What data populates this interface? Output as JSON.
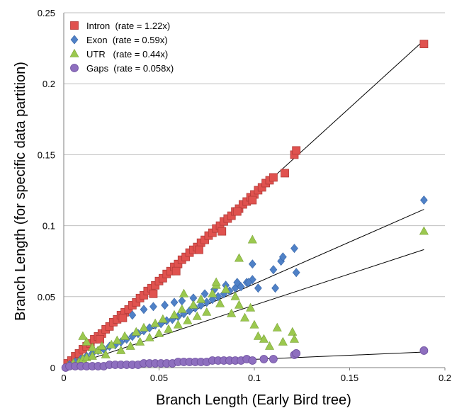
{
  "chart_data": {
    "type": "scatter",
    "title": "",
    "xlabel": "Branch Length (Early Bird tree)",
    "ylabel": "Branch Length (for specific data partition)",
    "xlim": [
      0,
      0.2
    ],
    "ylim": [
      0,
      0.25
    ],
    "x_ticks": [
      "0",
      "0.05",
      "0.1",
      "0.15",
      "0.2"
    ],
    "y_ticks": [
      "0",
      "0.05",
      "0.1",
      "0.15",
      "0.2",
      "0.25"
    ],
    "grid": "horizontal",
    "legend_position": "top-left",
    "series": [
      {
        "name": "Intron  (rate = 1.22x)",
        "marker": "square",
        "color": "#e0524f",
        "rate": 1.22,
        "points": [
          [
            0.002,
            0.003
          ],
          [
            0.004,
            0.005
          ],
          [
            0.006,
            0.008
          ],
          [
            0.008,
            0.01
          ],
          [
            0.01,
            0.013
          ],
          [
            0.012,
            0.015
          ],
          [
            0.014,
            0.017
          ],
          [
            0.016,
            0.02
          ],
          [
            0.018,
            0.022
          ],
          [
            0.02,
            0.024
          ],
          [
            0.022,
            0.027
          ],
          [
            0.024,
            0.029
          ],
          [
            0.026,
            0.032
          ],
          [
            0.028,
            0.034
          ],
          [
            0.03,
            0.037
          ],
          [
            0.032,
            0.039
          ],
          [
            0.034,
            0.041
          ],
          [
            0.036,
            0.044
          ],
          [
            0.038,
            0.046
          ],
          [
            0.04,
            0.049
          ],
          [
            0.042,
            0.051
          ],
          [
            0.044,
            0.054
          ],
          [
            0.046,
            0.056
          ],
          [
            0.048,
            0.058
          ],
          [
            0.05,
            0.061
          ],
          [
            0.052,
            0.063
          ],
          [
            0.054,
            0.066
          ],
          [
            0.056,
            0.068
          ],
          [
            0.058,
            0.071
          ],
          [
            0.06,
            0.073
          ],
          [
            0.062,
            0.076
          ],
          [
            0.064,
            0.078
          ],
          [
            0.066,
            0.081
          ],
          [
            0.068,
            0.083
          ],
          [
            0.07,
            0.085
          ],
          [
            0.072,
            0.088
          ],
          [
            0.074,
            0.09
          ],
          [
            0.076,
            0.093
          ],
          [
            0.078,
            0.095
          ],
          [
            0.08,
            0.098
          ],
          [
            0.082,
            0.1
          ],
          [
            0.084,
            0.103
          ],
          [
            0.086,
            0.105
          ],
          [
            0.088,
            0.107
          ],
          [
            0.09,
            0.11
          ],
          [
            0.092,
            0.112
          ],
          [
            0.094,
            0.115
          ],
          [
            0.096,
            0.117
          ],
          [
            0.098,
            0.12
          ],
          [
            0.1,
            0.122
          ],
          [
            0.102,
            0.125
          ],
          [
            0.104,
            0.127
          ],
          [
            0.106,
            0.13
          ],
          [
            0.108,
            0.132
          ],
          [
            0.11,
            0.134
          ],
          [
            0.116,
            0.137
          ],
          [
            0.121,
            0.15
          ],
          [
            0.122,
            0.153
          ],
          [
            0.019,
            0.02
          ],
          [
            0.031,
            0.035
          ],
          [
            0.047,
            0.052
          ],
          [
            0.059,
            0.068
          ],
          [
            0.071,
            0.083
          ],
          [
            0.083,
            0.096
          ],
          [
            0.091,
            0.11
          ],
          [
            0.099,
            0.118
          ],
          [
            0.189,
            0.228
          ]
        ]
      },
      {
        "name": "Exon  (rate = 0.59x)",
        "marker": "diamond",
        "color": "#4f81c7",
        "rate": 0.59,
        "points": [
          [
            0.003,
            0.002
          ],
          [
            0.006,
            0.004
          ],
          [
            0.009,
            0.006
          ],
          [
            0.012,
            0.008
          ],
          [
            0.015,
            0.01
          ],
          [
            0.018,
            0.012
          ],
          [
            0.021,
            0.013
          ],
          [
            0.024,
            0.015
          ],
          [
            0.027,
            0.016
          ],
          [
            0.03,
            0.018
          ],
          [
            0.033,
            0.02
          ],
          [
            0.036,
            0.022
          ],
          [
            0.039,
            0.024
          ],
          [
            0.042,
            0.026
          ],
          [
            0.045,
            0.028
          ],
          [
            0.048,
            0.03
          ],
          [
            0.051,
            0.031
          ],
          [
            0.054,
            0.033
          ],
          [
            0.057,
            0.034
          ],
          [
            0.06,
            0.036
          ],
          [
            0.063,
            0.038
          ],
          [
            0.066,
            0.04
          ],
          [
            0.069,
            0.042
          ],
          [
            0.072,
            0.044
          ],
          [
            0.075,
            0.046
          ],
          [
            0.078,
            0.048
          ],
          [
            0.081,
            0.05
          ],
          [
            0.084,
            0.052
          ],
          [
            0.087,
            0.054
          ],
          [
            0.09,
            0.056
          ],
          [
            0.093,
            0.057
          ],
          [
            0.096,
            0.06
          ],
          [
            0.099,
            0.062
          ],
          [
            0.102,
            0.056
          ],
          [
            0.036,
            0.037
          ],
          [
            0.042,
            0.041
          ],
          [
            0.047,
            0.043
          ],
          [
            0.053,
            0.044
          ],
          [
            0.058,
            0.046
          ],
          [
            0.062,
            0.047
          ],
          [
            0.068,
            0.049
          ],
          [
            0.074,
            0.052
          ],
          [
            0.079,
            0.055
          ],
          [
            0.085,
            0.058
          ],
          [
            0.091,
            0.06
          ],
          [
            0.097,
            0.06
          ],
          [
            0.11,
            0.069
          ],
          [
            0.111,
            0.056
          ],
          [
            0.114,
            0.075
          ],
          [
            0.115,
            0.078
          ],
          [
            0.121,
            0.084
          ],
          [
            0.122,
            0.067
          ],
          [
            0.099,
            0.073
          ],
          [
            0.189,
            0.118
          ]
        ]
      },
      {
        "name": "UTR   (rate = 0.44x)",
        "marker": "triangle",
        "color": "#9bc84f",
        "rate": 0.44,
        "points": [
          [
            0.002,
            0.001
          ],
          [
            0.005,
            0.003
          ],
          [
            0.008,
            0.004
          ],
          [
            0.01,
            0.006
          ],
          [
            0.012,
            0.007
          ],
          [
            0.015,
            0.008
          ],
          [
            0.01,
            0.022
          ],
          [
            0.012,
            0.018
          ],
          [
            0.015,
            0.014
          ],
          [
            0.018,
            0.012
          ],
          [
            0.02,
            0.015
          ],
          [
            0.022,
            0.009
          ],
          [
            0.025,
            0.016
          ],
          [
            0.028,
            0.019
          ],
          [
            0.03,
            0.012
          ],
          [
            0.032,
            0.022
          ],
          [
            0.035,
            0.015
          ],
          [
            0.038,
            0.025
          ],
          [
            0.04,
            0.018
          ],
          [
            0.042,
            0.028
          ],
          [
            0.045,
            0.021
          ],
          [
            0.048,
            0.031
          ],
          [
            0.05,
            0.024
          ],
          [
            0.052,
            0.034
          ],
          [
            0.055,
            0.027
          ],
          [
            0.058,
            0.037
          ],
          [
            0.06,
            0.03
          ],
          [
            0.062,
            0.041
          ],
          [
            0.065,
            0.033
          ],
          [
            0.068,
            0.044
          ],
          [
            0.07,
            0.036
          ],
          [
            0.072,
            0.048
          ],
          [
            0.075,
            0.039
          ],
          [
            0.078,
            0.052
          ],
          [
            0.08,
            0.058
          ],
          [
            0.082,
            0.045
          ],
          [
            0.085,
            0.055
          ],
          [
            0.088,
            0.038
          ],
          [
            0.09,
            0.05
          ],
          [
            0.092,
            0.044
          ],
          [
            0.095,
            0.035
          ],
          [
            0.098,
            0.042
          ],
          [
            0.1,
            0.03
          ],
          [
            0.102,
            0.022
          ],
          [
            0.105,
            0.02
          ],
          [
            0.108,
            0.015
          ],
          [
            0.112,
            0.028
          ],
          [
            0.115,
            0.018
          ],
          [
            0.12,
            0.025
          ],
          [
            0.121,
            0.02
          ],
          [
            0.099,
            0.09
          ],
          [
            0.092,
            0.077
          ],
          [
            0.08,
            0.06
          ],
          [
            0.063,
            0.052
          ],
          [
            0.189,
            0.096
          ]
        ]
      },
      {
        "name": "Gaps  (rate = 0.058x)",
        "marker": "circle",
        "color": "#8e6fbf",
        "rate": 0.058,
        "points": [
          [
            0.001,
            0.0
          ],
          [
            0.003,
            0.001
          ],
          [
            0.006,
            0.001
          ],
          [
            0.009,
            0.001
          ],
          [
            0.012,
            0.001
          ],
          [
            0.015,
            0.001
          ],
          [
            0.018,
            0.001
          ],
          [
            0.021,
            0.001
          ],
          [
            0.024,
            0.002
          ],
          [
            0.027,
            0.002
          ],
          [
            0.03,
            0.002
          ],
          [
            0.033,
            0.002
          ],
          [
            0.036,
            0.002
          ],
          [
            0.039,
            0.002
          ],
          [
            0.042,
            0.003
          ],
          [
            0.045,
            0.003
          ],
          [
            0.048,
            0.003
          ],
          [
            0.051,
            0.003
          ],
          [
            0.054,
            0.003
          ],
          [
            0.057,
            0.003
          ],
          [
            0.06,
            0.004
          ],
          [
            0.063,
            0.004
          ],
          [
            0.066,
            0.004
          ],
          [
            0.069,
            0.004
          ],
          [
            0.072,
            0.004
          ],
          [
            0.075,
            0.004
          ],
          [
            0.078,
            0.005
          ],
          [
            0.081,
            0.005
          ],
          [
            0.084,
            0.005
          ],
          [
            0.087,
            0.005
          ],
          [
            0.09,
            0.005
          ],
          [
            0.093,
            0.005
          ],
          [
            0.096,
            0.006
          ],
          [
            0.099,
            0.005
          ],
          [
            0.105,
            0.006
          ],
          [
            0.11,
            0.006
          ],
          [
            0.121,
            0.009
          ],
          [
            0.122,
            0.01
          ],
          [
            0.189,
            0.012
          ]
        ]
      }
    ],
    "trendlines": [
      {
        "name": "Intron fit",
        "slope": 1.22
      },
      {
        "name": "Exon fit",
        "slope": 0.59
      },
      {
        "name": "UTR fit",
        "slope": 0.44
      },
      {
        "name": "Gaps fit",
        "slope": 0.058
      }
    ]
  }
}
